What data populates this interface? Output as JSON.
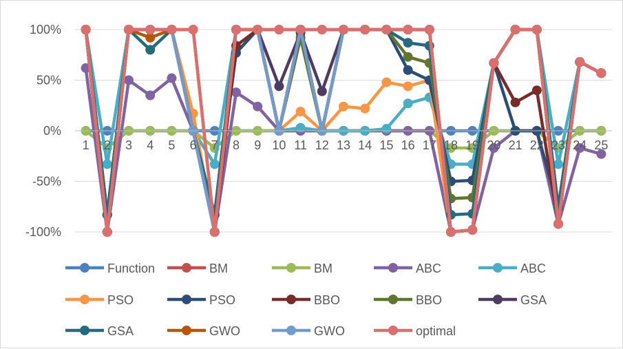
{
  "chart_data": {
    "type": "line",
    "x": [
      1,
      2,
      3,
      4,
      5,
      6,
      7,
      8,
      9,
      10,
      11,
      12,
      13,
      14,
      15,
      16,
      17,
      18,
      19,
      20,
      21,
      22,
      23,
      24,
      25
    ],
    "x_tick_labels": [
      "1",
      "2",
      "3",
      "4",
      "5",
      "6",
      "7",
      "8",
      "9",
      "10",
      "11",
      "12",
      "13",
      "14",
      "15",
      "16",
      "17",
      "18",
      "19",
      "20",
      "21",
      "22",
      "23",
      "24",
      "25"
    ],
    "ylim": [
      -100,
      100
    ],
    "y_ticks": [
      100,
      50,
      0,
      -50,
      -100
    ],
    "y_tick_labels": [
      "100%",
      "50%",
      "0%",
      "-50%",
      "-100%"
    ],
    "grid": "horizontal",
    "legend_position": "bottom",
    "series": [
      {
        "name": "Function",
        "color": "#4f81bd",
        "values": [
          0,
          0,
          0,
          0,
          0,
          0,
          0,
          0,
          0,
          0,
          0,
          0,
          0,
          0,
          0,
          0,
          0,
          0,
          0,
          0,
          0,
          0,
          0,
          0,
          0
        ]
      },
      {
        "name": "BM",
        "color": "#c0504d",
        "values": [
          100,
          -100,
          100,
          100,
          100,
          100,
          -100,
          100,
          100,
          100,
          100,
          100,
          100,
          100,
          100,
          100,
          100,
          -100,
          -98,
          67,
          100,
          100,
          -92,
          68,
          57
        ]
      },
      {
        "name": "BM",
        "color": "#9bbb59",
        "values": [
          0,
          -17,
          0,
          0,
          0,
          0,
          -17,
          0,
          0,
          0,
          0,
          0,
          0,
          0,
          0,
          0,
          0,
          -17,
          -17,
          0,
          0,
          0,
          -17,
          0,
          0
        ]
      },
      {
        "name": "ABC",
        "color": "#8064a2",
        "values": [
          62,
          -100,
          50,
          35,
          52,
          0,
          -100,
          38,
          24,
          0,
          0,
          0,
          0,
          0,
          0,
          0,
          0,
          -100,
          -98,
          -17,
          0,
          0,
          -92,
          -17,
          -23
        ]
      },
      {
        "name": "ABC",
        "color": "#4bacc6",
        "values": [
          100,
          -33,
          100,
          100,
          100,
          0,
          -33,
          100,
          100,
          0,
          3,
          0,
          0,
          0,
          2,
          27,
          33,
          -33,
          -33,
          67,
          100,
          100,
          -33,
          68,
          57
        ]
      },
      {
        "name": "PSO",
        "color": "#f79646",
        "values": [
          100,
          -100,
          100,
          100,
          100,
          17,
          -100,
          100,
          100,
          0,
          19,
          0,
          24,
          22,
          48,
          44,
          50,
          -100,
          -98,
          67,
          100,
          100,
          -92,
          68,
          57
        ]
      },
      {
        "name": "PSO",
        "color": "#2c4d75",
        "values": [
          100,
          -83,
          100,
          100,
          100,
          0,
          -83,
          77,
          100,
          0,
          100,
          0,
          100,
          100,
          100,
          60,
          50,
          -50,
          -49,
          67,
          0,
          0,
          -76,
          68,
          57
        ]
      },
      {
        "name": "BBO",
        "color": "#772c2a",
        "values": [
          100,
          -100,
          100,
          100,
          100,
          0,
          -100,
          84,
          100,
          0,
          100,
          0,
          100,
          100,
          100,
          100,
          100,
          -100,
          -98,
          67,
          28,
          40,
          -92,
          68,
          57
        ]
      },
      {
        "name": "BBO",
        "color": "#5f7530",
        "values": [
          100,
          -83,
          100,
          100,
          100,
          0,
          -83,
          100,
          100,
          0,
          92,
          0,
          100,
          100,
          100,
          73,
          67,
          -67,
          -66,
          67,
          100,
          100,
          -76,
          68,
          57
        ]
      },
      {
        "name": "GSA",
        "color": "#4d3b62",
        "values": [
          100,
          -100,
          100,
          100,
          100,
          0,
          -100,
          100,
          100,
          44,
          97,
          39,
          100,
          100,
          100,
          100,
          100,
          -100,
          -98,
          67,
          100,
          100,
          -92,
          68,
          57
        ]
      },
      {
        "name": "GSA",
        "color": "#276a7c",
        "values": [
          100,
          -83,
          100,
          80,
          100,
          0,
          -83,
          100,
          100,
          0,
          100,
          0,
          100,
          100,
          100,
          87,
          84,
          -83,
          -82,
          67,
          100,
          100,
          -76,
          68,
          57
        ]
      },
      {
        "name": "GWO",
        "color": "#b65708",
        "values": [
          100,
          -100,
          100,
          92,
          100,
          0,
          -100,
          100,
          100,
          0,
          100,
          0,
          100,
          100,
          100,
          100,
          100,
          -100,
          -98,
          67,
          100,
          100,
          -92,
          68,
          57
        ]
      },
      {
        "name": "GWO",
        "color": "#729aca",
        "values": [
          100,
          -100,
          100,
          100,
          100,
          0,
          -100,
          100,
          100,
          0,
          100,
          0,
          100,
          100,
          100,
          100,
          100,
          -100,
          -98,
          67,
          100,
          100,
          -92,
          68,
          57
        ]
      },
      {
        "name": "optimal",
        "color": "#d9706e",
        "values": [
          100,
          -100,
          100,
          100,
          100,
          100,
          -100,
          100,
          100,
          100,
          100,
          100,
          100,
          100,
          100,
          100,
          100,
          -100,
          -98,
          67,
          100,
          100,
          -92,
          68,
          57
        ]
      }
    ]
  }
}
